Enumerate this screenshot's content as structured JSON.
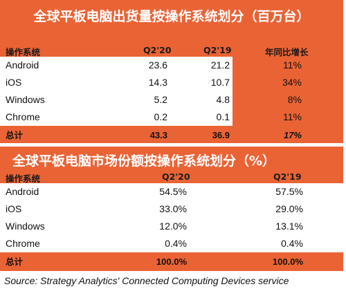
{
  "shipments": {
    "title": "全球平板电脑出货量按操作系统划分（百万台）",
    "headers": {
      "os": "操作系统",
      "q2_20": "Q2'20",
      "q2_19": "Q2'19",
      "yoy": "年同比增长"
    },
    "rows": [
      {
        "os": "Android",
        "q2_20": "23.6",
        "q2_19": "21.2",
        "yoy": "11%"
      },
      {
        "os": "iOS",
        "q2_20": "14.3",
        "q2_19": "10.7",
        "yoy": "34%"
      },
      {
        "os": "Windows",
        "q2_20": "5.2",
        "q2_19": "4.8",
        "yoy": "8%"
      },
      {
        "os": "Chrome",
        "q2_20": "0.2",
        "q2_19": "0.1",
        "yoy": "11%"
      }
    ],
    "total": {
      "os": "总计",
      "q2_20": "43.3",
      "q2_19": "36.9",
      "yoy": "17%"
    }
  },
  "market_share": {
    "title": "全球平板电脑市场份额按操作系统划分（%）",
    "headers": {
      "os": "操作系统",
      "q2_20": "Q2'20",
      "q2_19": "Q2'19"
    },
    "rows": [
      {
        "os": "Android",
        "q2_20": "54.5%",
        "q2_19": "57.5%"
      },
      {
        "os": "iOS",
        "q2_20": "33.0%",
        "q2_19": "29.0%"
      },
      {
        "os": "Windows",
        "q2_20": "12.0%",
        "q2_19": "13.1%"
      },
      {
        "os": "Chrome",
        "q2_20": "0.4%",
        "q2_19": "0.4%"
      }
    ],
    "total": {
      "os": "总计",
      "q2_20": "100.0%",
      "q2_19": "100.0%"
    }
  },
  "source": "Source: Strategy Analytics' Connected Computing Devices service",
  "colors": {
    "accent": "#ea6335",
    "text": "#111111",
    "background": "#ffffff"
  }
}
